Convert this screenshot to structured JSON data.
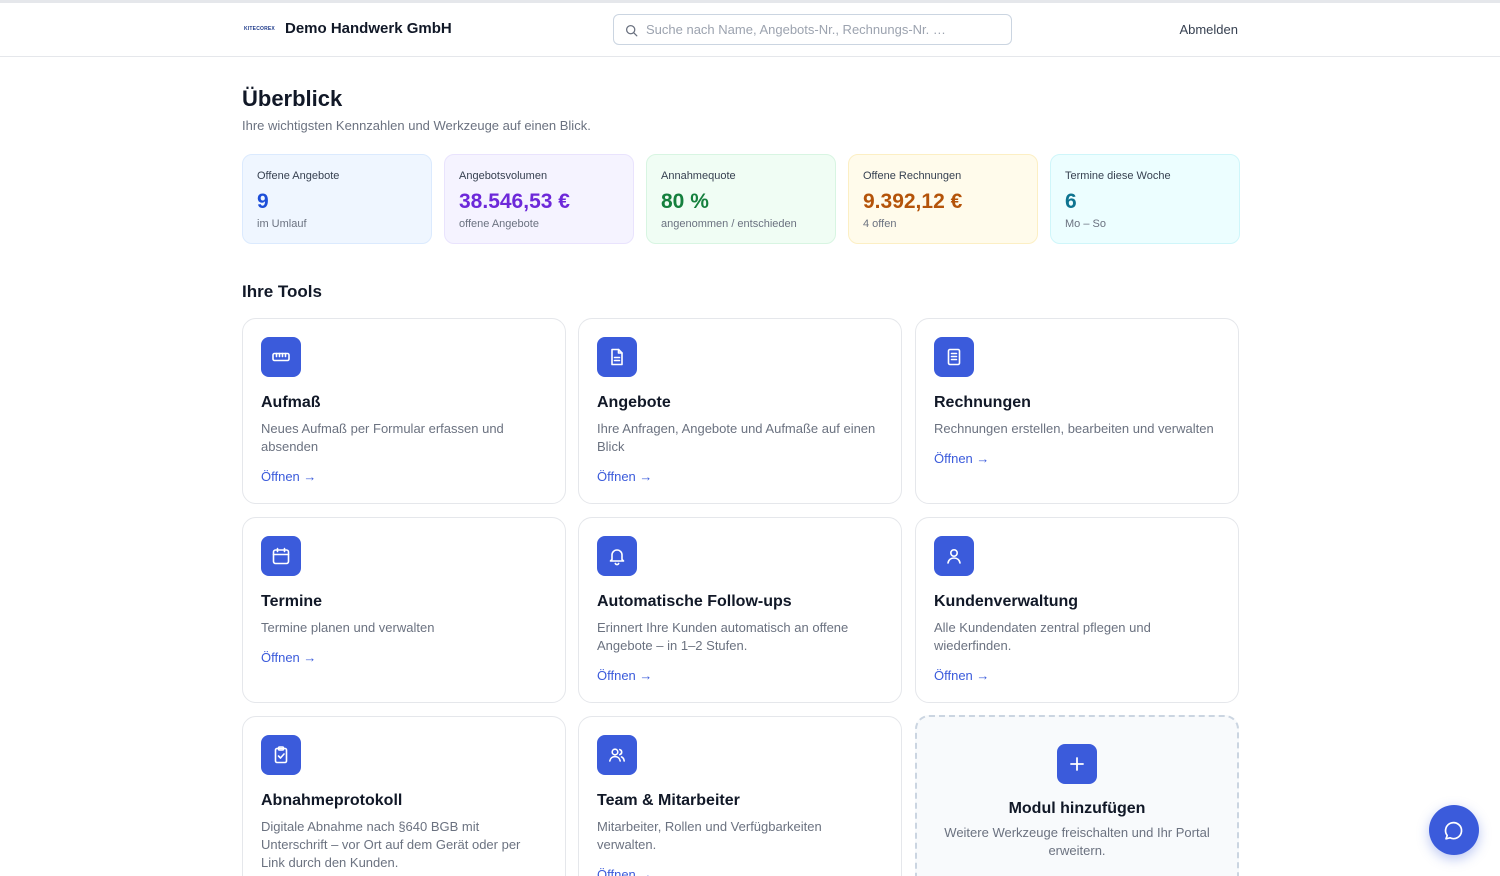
{
  "header": {
    "logo_text": "KITECOREX",
    "company": "Demo Handwerk GmbH",
    "search_placeholder": "Suche nach Name, Angebots-Nr., Rechnungs-Nr. …",
    "logout_label": "Abmelden"
  },
  "overview": {
    "title": "Überblick",
    "subtitle": "Ihre wichtigsten Kennzahlen und Werkzeuge auf einen Blick."
  },
  "kpis": [
    {
      "label": "Offene Angebote",
      "value": "9",
      "sub": "im Umlauf",
      "color": "#1d4ed8",
      "bg": "#eff6ff",
      "border": "#dbeafe"
    },
    {
      "label": "Angebotsvolumen",
      "value": "38.546,53 €",
      "sub": "offene Angebote",
      "color": "#6d28d9",
      "bg": "#f5f3ff",
      "border": "#e9e3fd"
    },
    {
      "label": "Annahmequote",
      "value": "80 %",
      "sub": "angenommen / entschieden",
      "color": "#15803d",
      "bg": "#f0fdf4",
      "border": "#d8f5e2"
    },
    {
      "label": "Offene Rechnungen",
      "value": "9.392,12 €",
      "sub": "4 offen",
      "color": "#b45309",
      "bg": "#fffbeb",
      "border": "#fcefc4"
    },
    {
      "label": "Termine diese Woche",
      "value": "6",
      "sub": "Mo – So",
      "color": "#0e7490",
      "bg": "#ecfeff",
      "border": "#cff6fa"
    }
  ],
  "tools": {
    "title": "Ihre Tools",
    "open_label": "Öffnen →",
    "items": [
      {
        "icon": "ruler-icon",
        "title": "Aufmaß",
        "desc": "Neues Aufmaß per Formular erfassen und absenden"
      },
      {
        "icon": "document-icon",
        "title": "Angebote",
        "desc": "Ihre Anfragen, Angebote und Aufmaße auf einen Blick"
      },
      {
        "icon": "invoice-icon",
        "title": "Rechnungen",
        "desc": "Rechnungen erstellen, bearbeiten und verwalten"
      },
      {
        "icon": "calendar-icon",
        "title": "Termine",
        "desc": "Termine planen und verwalten"
      },
      {
        "icon": "bell-icon",
        "title": "Automatische Follow-ups",
        "desc": "Erinnert Ihre Kunden automatisch an offene Angebote – in 1–2 Stufen."
      },
      {
        "icon": "user-icon",
        "title": "Kundenverwaltung",
        "desc": "Alle Kundendaten zentral pflegen und wiederfinden."
      },
      {
        "icon": "clipboard-check-icon",
        "title": "Abnahmeprotokoll",
        "desc": "Digitale Abnahme nach §640 BGB mit Unterschrift – vor Ort auf dem Gerät oder per Link durch den Kunden."
      },
      {
        "icon": "users-icon",
        "title": "Team & Mitarbeiter",
        "desc": "Mitarbeiter, Rollen und Verfügbarkeiten verwalten."
      }
    ],
    "add_module": {
      "title": "Modul hinzufügen",
      "desc": "Weitere Werkzeuge freischalten und Ihr Portal erweitern."
    }
  },
  "colors": {
    "accent": "#3b5bdb"
  }
}
